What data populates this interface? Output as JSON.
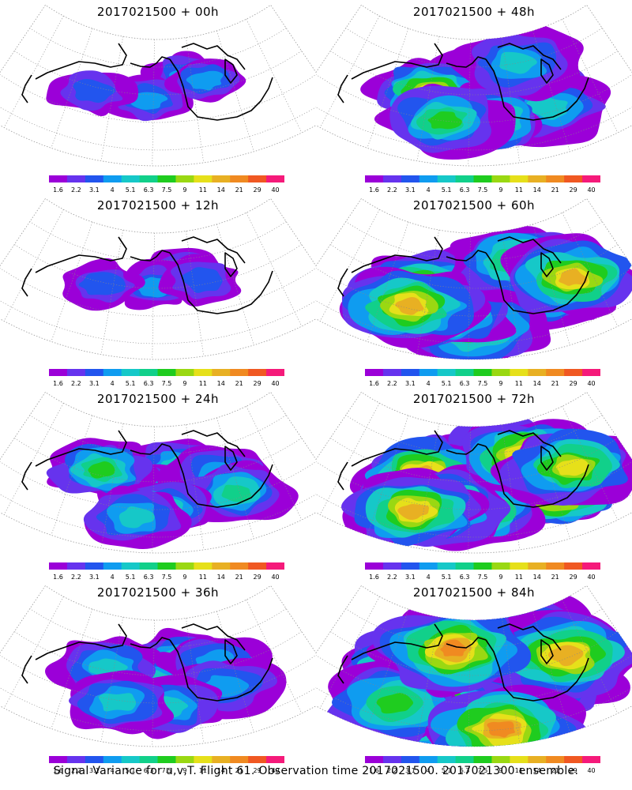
{
  "footer": "Signal Variance for u,v,T. Flight 61. Observation time 2017021500. 2017021300 ensemble.",
  "colorbar": {
    "labels": [
      "1.6",
      "2.2",
      "3.1",
      "4",
      "5.1",
      "6.3",
      "7.5",
      "9",
      "11",
      "14",
      "21",
      "29",
      "40"
    ],
    "colors": [
      "#9b00d8",
      "#6633ee",
      "#2255ee",
      "#0f9cf0",
      "#16c8c8",
      "#11d08a",
      "#1fcc1f",
      "#9ad812",
      "#e6e01a",
      "#e8b023",
      "#f08a21",
      "#f05822",
      "#f51a7a"
    ]
  },
  "chart_data": [
    {
      "type": "heatmap",
      "title": "2017021500 + 00h",
      "lead_hours": 0,
      "intensity": "low",
      "colorbar_labels": [
        "1.6",
        "2.2",
        "3.1",
        "4",
        "5.1",
        "6.3",
        "7.5",
        "9",
        "11",
        "14",
        "21",
        "29",
        "40"
      ]
    },
    {
      "type": "heatmap",
      "title": "2017021500 + 12h",
      "lead_hours": 12,
      "intensity": "low",
      "colorbar_labels": [
        "1.6",
        "2.2",
        "3.1",
        "4",
        "5.1",
        "6.3",
        "7.5",
        "9",
        "11",
        "14",
        "21",
        "29",
        "40"
      ]
    },
    {
      "type": "heatmap",
      "title": "2017021500 + 24h",
      "lead_hours": 24,
      "intensity": "moderate",
      "colorbar_labels": [
        "1.6",
        "2.2",
        "3.1",
        "4",
        "5.1",
        "6.3",
        "7.5",
        "9",
        "11",
        "14",
        "21",
        "29",
        "40"
      ]
    },
    {
      "type": "heatmap",
      "title": "2017021500 + 36h",
      "lead_hours": 36,
      "intensity": "moderate",
      "colorbar_labels": [
        "1.6",
        "2.2",
        "3.1",
        "4",
        "5.1",
        "6.3",
        "7.5",
        "9",
        "11",
        "14",
        "21",
        "29",
        "40"
      ]
    },
    {
      "type": "heatmap",
      "title": "2017021500 + 48h",
      "lead_hours": 48,
      "intensity": "moderate-high",
      "colorbar_labels": [
        "1.6",
        "2.2",
        "3.1",
        "4",
        "5.1",
        "6.3",
        "7.5",
        "9",
        "11",
        "14",
        "21",
        "29",
        "40"
      ]
    },
    {
      "type": "heatmap",
      "title": "2017021500 + 60h",
      "lead_hours": 60,
      "intensity": "high",
      "colorbar_labels": [
        "1.6",
        "2.2",
        "3.1",
        "4",
        "5.1",
        "6.3",
        "7.5",
        "9",
        "11",
        "14",
        "21",
        "29",
        "40"
      ]
    },
    {
      "type": "heatmap",
      "title": "2017021500 + 72h",
      "lead_hours": 72,
      "intensity": "high",
      "colorbar_labels": [
        "1.6",
        "2.2",
        "3.1",
        "4",
        "5.1",
        "6.3",
        "7.5",
        "9",
        "11",
        "14",
        "21",
        "29",
        "40"
      ]
    },
    {
      "type": "heatmap",
      "title": "2017021500 + 84h",
      "lead_hours": 84,
      "intensity": "very-high",
      "colorbar_labels": [
        "1.6",
        "2.2",
        "3.1",
        "4",
        "5.1",
        "6.3",
        "7.5",
        "9",
        "11",
        "14",
        "21",
        "29",
        "40"
      ]
    }
  ]
}
